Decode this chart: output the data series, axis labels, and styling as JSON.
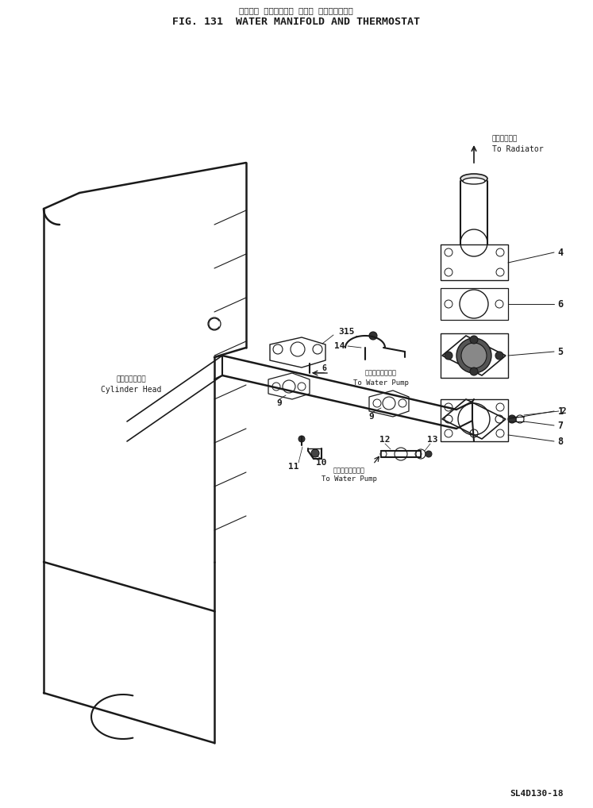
{
  "title_jp": "ウォータ マニホールド および サーモスタット",
  "title_en": "FIG. 131  WATER MANIFOLD AND THERMOSTAT",
  "part_number": "SL4D130-18",
  "bg_color": "#ffffff",
  "lc": "#1a1a1a",
  "label_ch_jp": "シリンダヘッド",
  "label_ch_en": "Cylinder Head",
  "label_rad_jp": "ラジエータへ",
  "label_rad_en": "To Radiator",
  "label_wp1_jp": "ウォータポンプへ",
  "label_wp1_en": "To Water Pump",
  "label_wp2_jp": "ウォータポンプへ",
  "label_wp2_en": "To Water Pump"
}
